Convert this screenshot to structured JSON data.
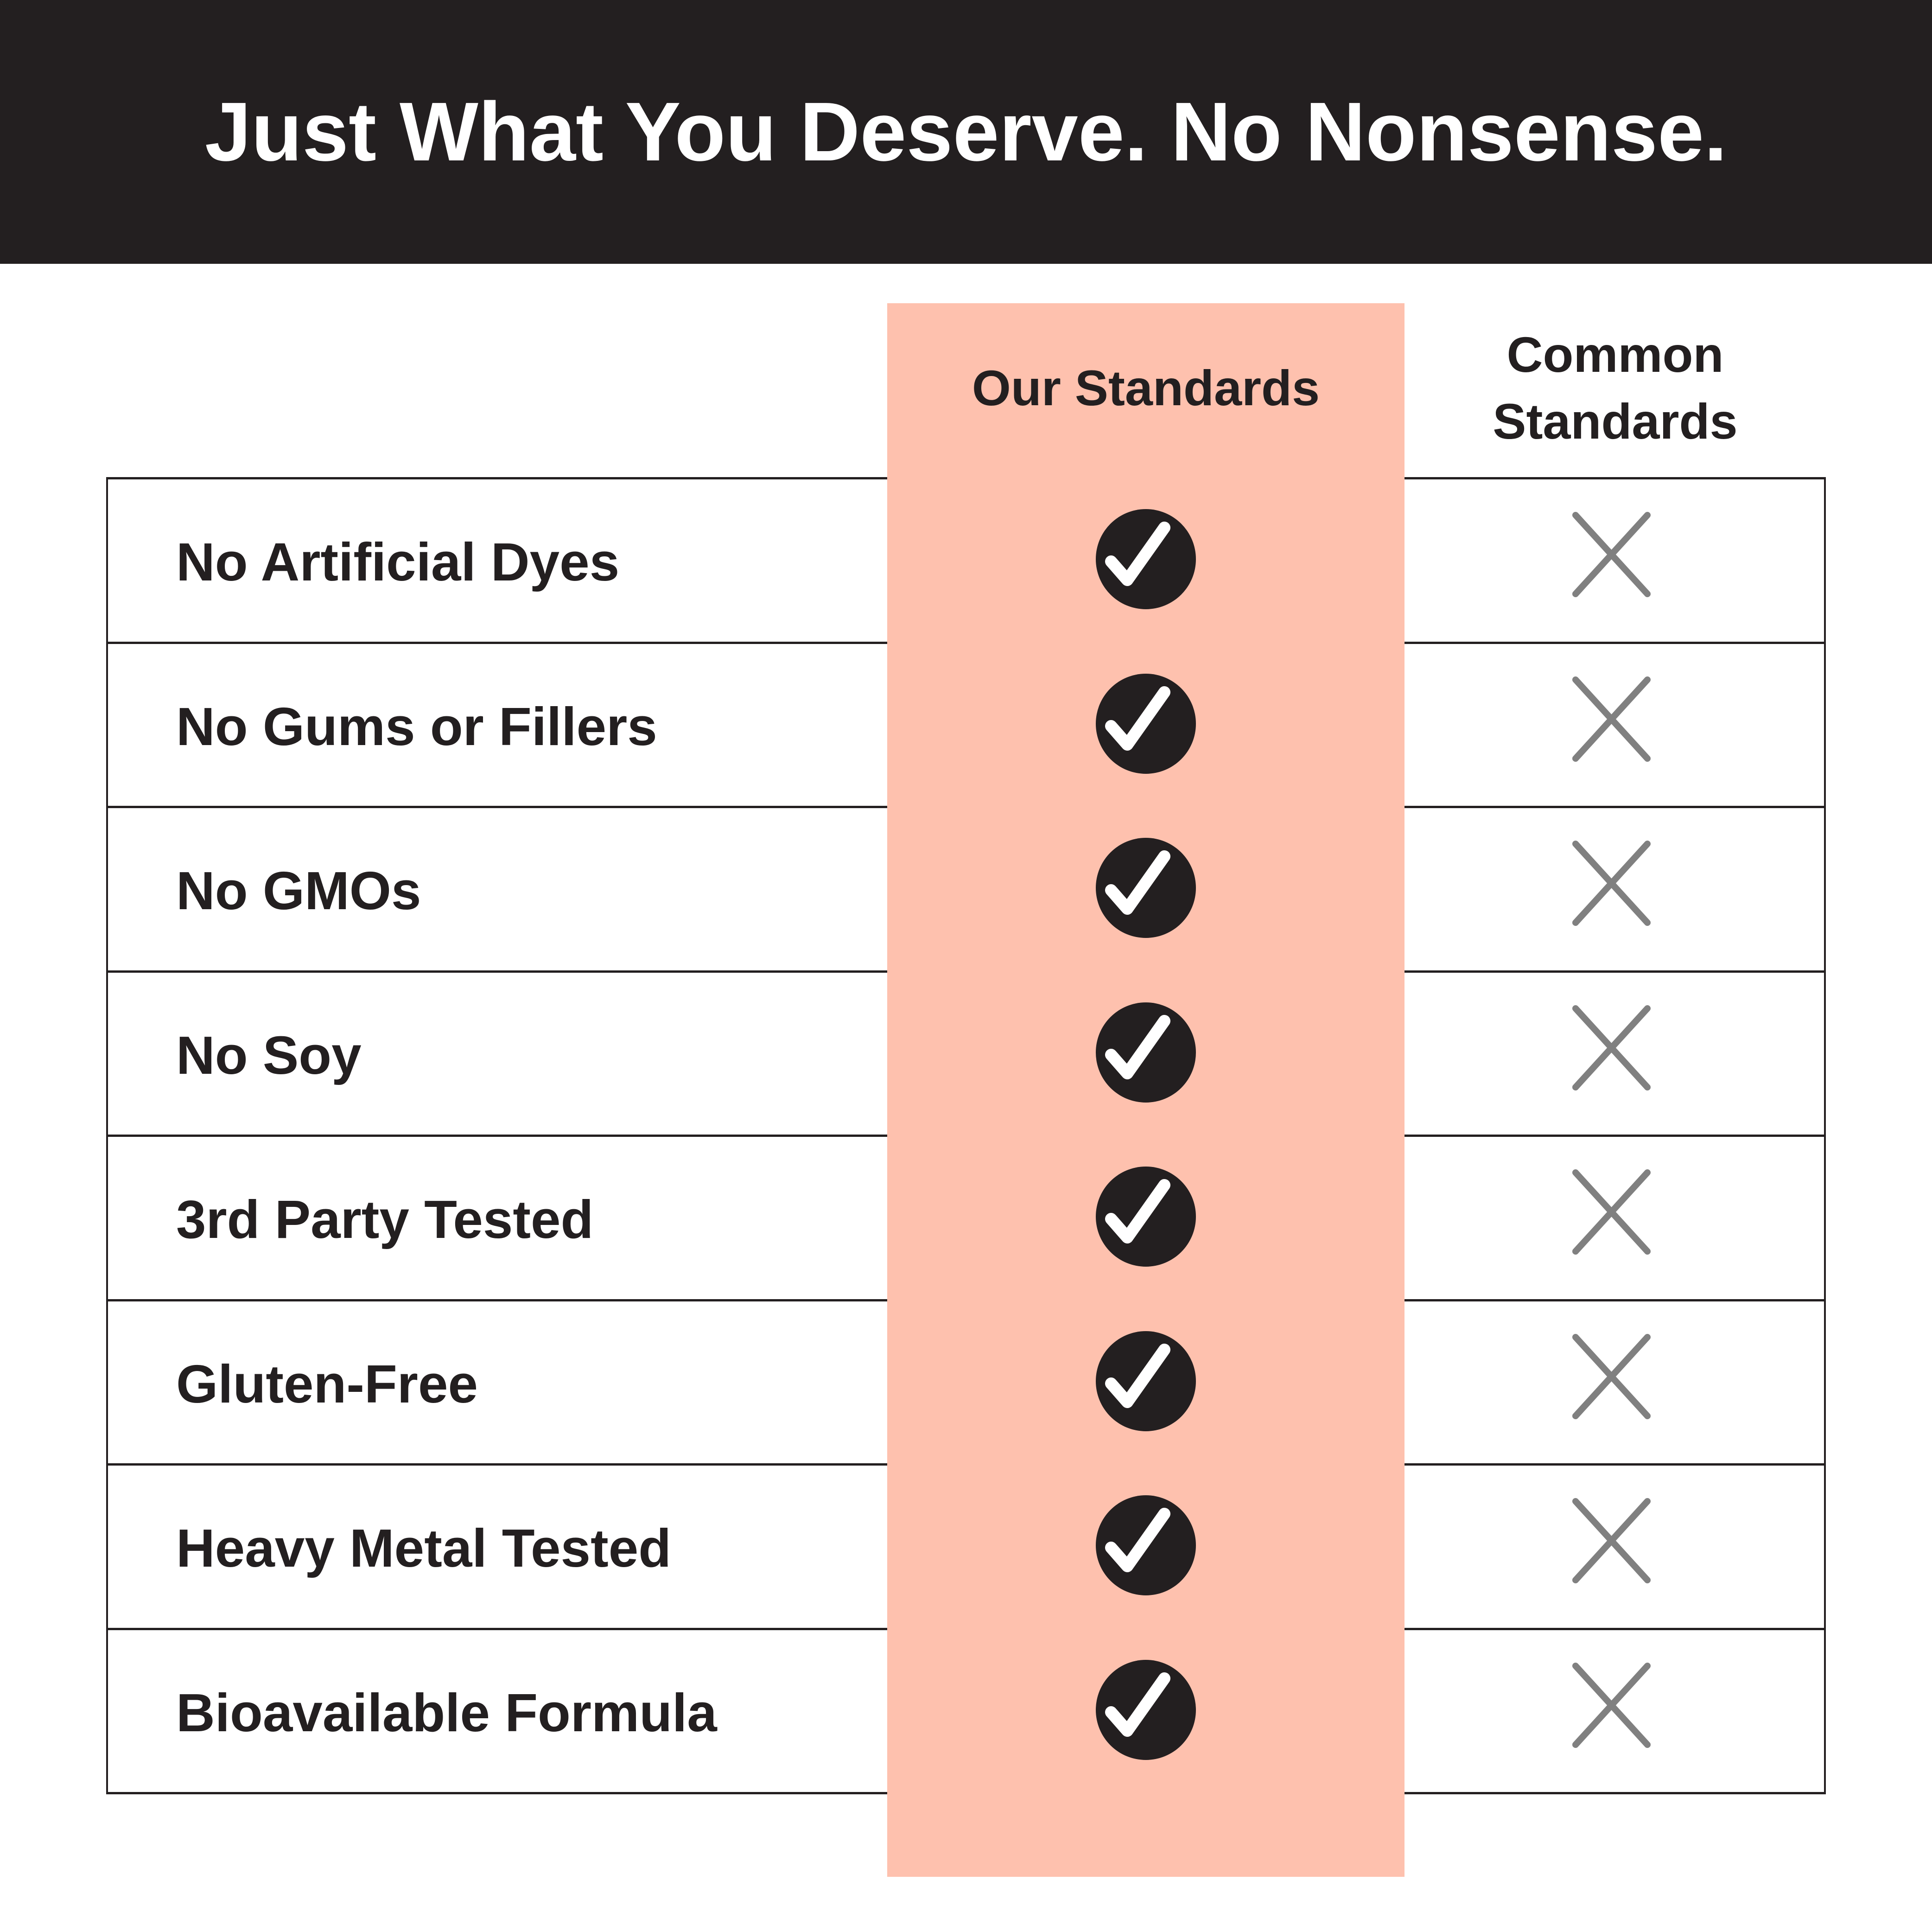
{
  "header": {
    "title": "Just What You Deserve. No Nonsense."
  },
  "columns": {
    "ours": "Our Standards",
    "common_line1": "Common",
    "common_line2": "Standards"
  },
  "colors": {
    "header_bg": "#231f20",
    "highlight": "#fec1ae",
    "check": "#231f20",
    "cross": "#808080"
  },
  "rows": [
    {
      "label": "No Artificial Dyes",
      "ours": "check-icon",
      "common": "x-icon"
    },
    {
      "label": "No Gums or Fillers",
      "ours": "check-icon",
      "common": "x-icon"
    },
    {
      "label": "No GMOs",
      "ours": "check-icon",
      "common": "x-icon"
    },
    {
      "label": "No Soy",
      "ours": "check-icon",
      "common": "x-icon"
    },
    {
      "label": "3rd Party Tested",
      "ours": "check-icon",
      "common": "x-icon"
    },
    {
      "label": "Gluten-Free",
      "ours": "check-icon",
      "common": "x-icon"
    },
    {
      "label": "Heavy Metal Tested",
      "ours": "check-icon",
      "common": "x-icon"
    },
    {
      "label": "Bioavailable Formula",
      "ours": "check-icon",
      "common": "x-icon"
    }
  ]
}
